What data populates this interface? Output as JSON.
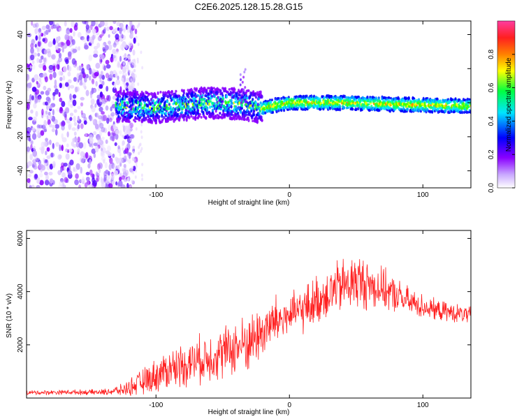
{
  "chart_data": [
    {
      "type": "heatmap",
      "title": "C2E6.2025.128.15.28.G15",
      "xlabel": "Height of straight line (km)",
      "ylabel": "Frequency (Hz)",
      "xlim": [
        -197,
        136
      ],
      "ylim": [
        -50,
        48
      ],
      "x_ticks": [
        -100,
        0,
        100
      ],
      "y_ticks": [
        -40,
        -20,
        0,
        20,
        40
      ],
      "colorbar": {
        "label": "Normalized spectral amplitude",
        "range": [
          0,
          1
        ],
        "ticks": [
          "0.0",
          "0.2",
          "0.4",
          "0.6",
          "0.8"
        ],
        "colors": [
          "#ffffff",
          "#c9a8ff",
          "#8a00ff",
          "#0000ff",
          "#00e5ff",
          "#00ff40",
          "#ffff00",
          "#ff8000",
          "#ff2020",
          "#ff3ca0"
        ]
      },
      "features": {
        "noise_region_x": [
          -197,
          -125
        ],
        "ridge": [
          {
            "x": -130,
            "y": -2
          },
          {
            "x": -100,
            "y": -3
          },
          {
            "x": -60,
            "y": 0
          },
          {
            "x": -35,
            "y": -1
          },
          {
            "x": -20,
            "y": -3
          },
          {
            "x": 0,
            "y": 0
          },
          {
            "x": 40,
            "y": 0
          },
          {
            "x": 80,
            "y": -1
          },
          {
            "x": 136,
            "y": -2
          }
        ],
        "spike": {
          "x": -35,
          "y_max": 20
        }
      }
    },
    {
      "type": "line",
      "xlabel": "Height of straight line (km)",
      "ylabel": "SNR (10 * v/v)",
      "xlim": [
        -197,
        136
      ],
      "ylim": [
        0,
        6300
      ],
      "x_ticks": [
        -100,
        0,
        100
      ],
      "y_ticks": [
        2000,
        4000,
        6000
      ],
      "series": [
        {
          "color": "#ff2020",
          "envelope_x": [
            -197,
            -170,
            -140,
            -125,
            -110,
            -90,
            -70,
            -50,
            -30,
            -10,
            0,
            10,
            30,
            50,
            70,
            90,
            110,
            136
          ],
          "envelope_y": [
            200,
            220,
            220,
            300,
            600,
            1100,
            1400,
            1700,
            2100,
            2900,
            3100,
            3300,
            4000,
            4400,
            4100,
            3600,
            3300,
            3100
          ],
          "amplitude": [
            80,
            80,
            100,
            200,
            450,
            700,
            800,
            900,
            1000,
            900,
            700,
            800,
            900,
            1000,
            700,
            500,
            350,
            300
          ]
        }
      ]
    }
  ]
}
